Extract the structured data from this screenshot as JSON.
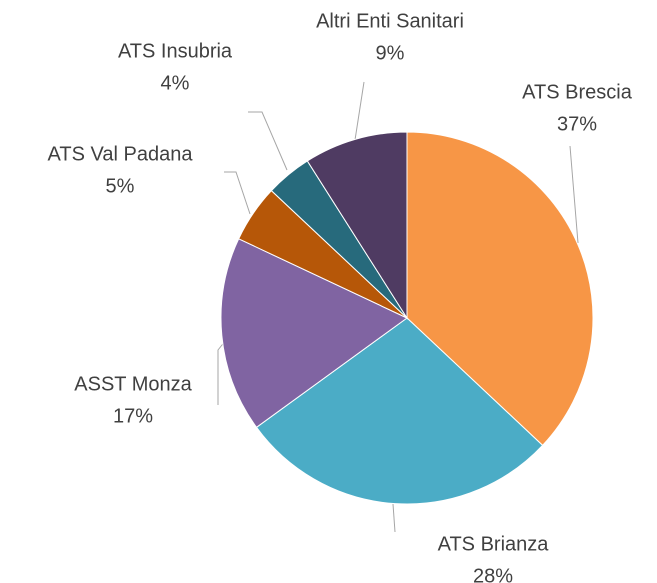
{
  "chart_data": {
    "type": "pie",
    "categories": [
      "ATS Brescia",
      "ATS Brianza",
      "ASST Monza",
      "ATS Val Padana",
      "ATS Insubria",
      "Altri Enti Sanitari"
    ],
    "values": [
      37,
      28,
      17,
      5,
      4,
      9
    ],
    "value_labels": [
      "37%",
      "28%",
      "17%",
      "5%",
      "4%",
      "9%"
    ],
    "colors": [
      "#f79646",
      "#4bacc6",
      "#8064a2",
      "#b65708",
      "#276a7c",
      "#4f3b62"
    ]
  }
}
